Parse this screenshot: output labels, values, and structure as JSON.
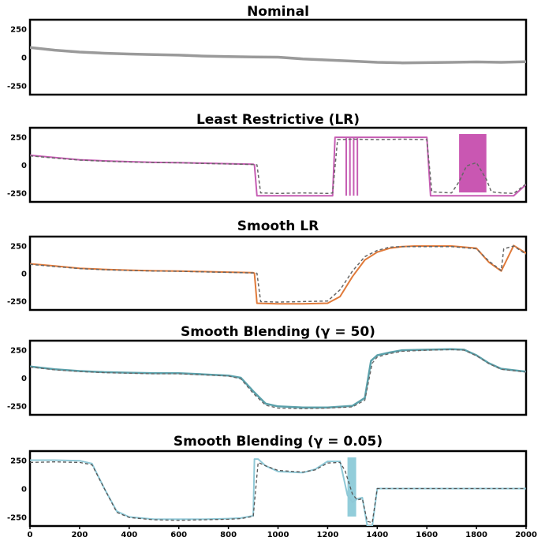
{
  "chart_data": [
    {
      "type": "line",
      "title": "Nominal",
      "ylim": [
        -330,
        330
      ],
      "yticks": [
        "250",
        "0",
        "-250"
      ],
      "xlim": [
        0,
        2000
      ],
      "series": [
        {
          "style": "solid",
          "color": "#9a9a9a",
          "width": 3.5,
          "x": [
            0,
            100,
            200,
            300,
            400,
            500,
            600,
            700,
            800,
            900,
            1000,
            1100,
            1200,
            1300,
            1400,
            1500,
            1600,
            1700,
            1800,
            1900,
            2000
          ],
          "y": [
            85,
            62,
            45,
            35,
            28,
            22,
            18,
            10,
            5,
            2,
            0,
            -15,
            -25,
            -35,
            -45,
            -50,
            -48,
            -45,
            -42,
            -45,
            -40
          ]
        }
      ]
    },
    {
      "type": "line",
      "title": "Least Restrictive (LR)",
      "ylim": [
        -330,
        330
      ],
      "yticks": [
        "250",
        "0",
        "-250"
      ],
      "xlim": [
        0,
        2000
      ],
      "spikes": [
        1275,
        1290,
        1305,
        1320
      ],
      "band": [
        1730,
        1840
      ],
      "band_color": "#c03aa5",
      "series": [
        {
          "style": "solid",
          "color": "#c65db3",
          "width": 2,
          "x": [
            0,
            100,
            200,
            300,
            400,
            500,
            600,
            700,
            800,
            900,
            905,
            915,
            1000,
            1100,
            1200,
            1220,
            1230,
            1300,
            1400,
            1500,
            1600,
            1615,
            1700,
            1800,
            1870,
            1950,
            2000
          ],
          "y": [
            85,
            65,
            45,
            35,
            28,
            22,
            20,
            15,
            10,
            5,
            0,
            -275,
            -275,
            -275,
            -275,
            -275,
            245,
            245,
            245,
            245,
            245,
            -275,
            -275,
            -275,
            -275,
            -275,
            -175
          ]
        },
        {
          "style": "dashed",
          "color": "#666666",
          "width": 1.5,
          "x": [
            0,
            100,
            200,
            300,
            400,
            500,
            600,
            700,
            800,
            900,
            915,
            930,
            1000,
            1100,
            1200,
            1220,
            1240,
            1300,
            1400,
            1500,
            1600,
            1620,
            1700,
            1730,
            1760,
            1800,
            1840,
            1860,
            1900,
            1950,
            2000
          ],
          "y": [
            80,
            60,
            42,
            32,
            25,
            20,
            18,
            12,
            8,
            3,
            0,
            -250,
            -255,
            -250,
            -255,
            -250,
            225,
            228,
            225,
            228,
            225,
            -240,
            -250,
            -150,
            -10,
            20,
            -130,
            -240,
            -250,
            -255,
            -170
          ]
        }
      ]
    },
    {
      "type": "line",
      "title": "Smooth LR",
      "ylim": [
        -330,
        330
      ],
      "yticks": [
        "250",
        "0",
        "-250"
      ],
      "xlim": [
        0,
        2000
      ],
      "series": [
        {
          "style": "solid",
          "color": "#e07a3a",
          "width": 2,
          "x": [
            0,
            100,
            200,
            300,
            400,
            500,
            600,
            700,
            800,
            900,
            905,
            915,
            1000,
            1100,
            1200,
            1250,
            1300,
            1350,
            1400,
            1450,
            1500,
            1550,
            1600,
            1700,
            1800,
            1850,
            1900,
            1950,
            2000
          ],
          "y": [
            85,
            65,
            45,
            35,
            28,
            22,
            20,
            15,
            10,
            5,
            0,
            -270,
            -275,
            -275,
            -270,
            -210,
            -30,
            120,
            190,
            225,
            240,
            245,
            245,
            245,
            225,
            100,
            20,
            250,
            180
          ]
        },
        {
          "style": "dashed",
          "color": "#666666",
          "width": 1.5,
          "x": [
            0,
            100,
            200,
            300,
            400,
            500,
            600,
            700,
            800,
            900,
            915,
            930,
            1000,
            1100,
            1200,
            1250,
            1300,
            1350,
            1400,
            1450,
            1500,
            1600,
            1700,
            1800,
            1850,
            1900,
            1910,
            1950,
            2000
          ],
          "y": [
            80,
            60,
            42,
            32,
            25,
            20,
            18,
            12,
            8,
            3,
            0,
            -255,
            -260,
            -255,
            -250,
            -150,
            20,
            150,
            205,
            235,
            240,
            240,
            240,
            220,
            110,
            25,
            220,
            245,
            170
          ]
        }
      ]
    },
    {
      "type": "line",
      "title": "Smooth Blending (γ = 50)",
      "ylim": [
        -330,
        330
      ],
      "yticks": [
        "250",
        "0",
        "-250"
      ],
      "xlim": [
        0,
        2000
      ],
      "series": [
        {
          "style": "solid",
          "color": "#5aa0aa",
          "width": 2.5,
          "x": [
            0,
            100,
            200,
            300,
            400,
            500,
            600,
            700,
            800,
            850,
            900,
            950,
            1000,
            1100,
            1200,
            1300,
            1350,
            1375,
            1400,
            1450,
            1500,
            1600,
            1700,
            1750,
            1800,
            1850,
            1900,
            2000
          ],
          "y": [
            100,
            75,
            60,
            50,
            45,
            40,
            40,
            30,
            20,
            0,
            -120,
            -230,
            -255,
            -265,
            -265,
            -250,
            -180,
            150,
            200,
            225,
            245,
            250,
            255,
            250,
            200,
            130,
            80,
            55
          ]
        },
        {
          "style": "dashed",
          "color": "#666666",
          "width": 1.3,
          "x": [
            0,
            100,
            200,
            300,
            400,
            500,
            600,
            700,
            800,
            850,
            900,
            950,
            1000,
            1100,
            1200,
            1300,
            1350,
            1380,
            1400,
            1450,
            1500,
            1600,
            1700,
            1750,
            1800,
            1850,
            1900,
            2000
          ],
          "y": [
            95,
            70,
            55,
            45,
            40,
            35,
            35,
            25,
            15,
            -10,
            -140,
            -245,
            -270,
            -275,
            -270,
            -260,
            -200,
            130,
            185,
            215,
            235,
            245,
            250,
            245,
            195,
            125,
            75,
            50
          ]
        }
      ]
    },
    {
      "type": "line",
      "title": "Smooth Blending (γ = 0.05)",
      "ylim": [
        -330,
        330
      ],
      "yticks": [
        "250",
        "0",
        "-250"
      ],
      "xlim": [
        0,
        2000
      ],
      "xticks": [
        "0",
        "200",
        "400",
        "600",
        "800",
        "1000",
        "1200",
        "1400",
        "1600",
        "1800",
        "2000"
      ],
      "band": [
        1280,
        1315
      ],
      "band_color": "#7fc4d4",
      "series": [
        {
          "style": "solid",
          "color": "#8fc8d6",
          "width": 2,
          "x": [
            0,
            100,
            200,
            250,
            300,
            350,
            400,
            500,
            600,
            700,
            800,
            850,
            900,
            905,
            920,
            950,
            1000,
            1100,
            1150,
            1200,
            1250,
            1280,
            1300,
            1320,
            1340,
            1360,
            1380,
            1400,
            1500,
            1600,
            1700,
            1800,
            1900,
            2000
          ],
          "y": [
            250,
            250,
            245,
            220,
            0,
            -200,
            -250,
            -270,
            -270,
            -270,
            -265,
            -260,
            -240,
            260,
            260,
            200,
            150,
            140,
            170,
            240,
            240,
            -60,
            -120,
            -90,
            -80,
            -330,
            -330,
            0,
            0,
            0,
            0,
            0,
            0,
            0
          ]
        },
        {
          "style": "dashed",
          "color": "#555555",
          "width": 1.3,
          "x": [
            0,
            100,
            200,
            250,
            300,
            350,
            400,
            500,
            600,
            700,
            800,
            850,
            900,
            920,
            950,
            1000,
            1100,
            1150,
            1200,
            1250,
            1270,
            1300,
            1320,
            1340,
            1360,
            1380,
            1400,
            1500,
            1600,
            1700,
            1800,
            1900,
            2000
          ],
          "y": [
            230,
            235,
            230,
            210,
            0,
            -210,
            -255,
            -275,
            -280,
            -275,
            -270,
            -265,
            -245,
            230,
            200,
            160,
            145,
            165,
            225,
            230,
            160,
            -50,
            -100,
            -90,
            -290,
            -300,
            0,
            0,
            0,
            0,
            0,
            0,
            0
          ]
        }
      ]
    }
  ]
}
